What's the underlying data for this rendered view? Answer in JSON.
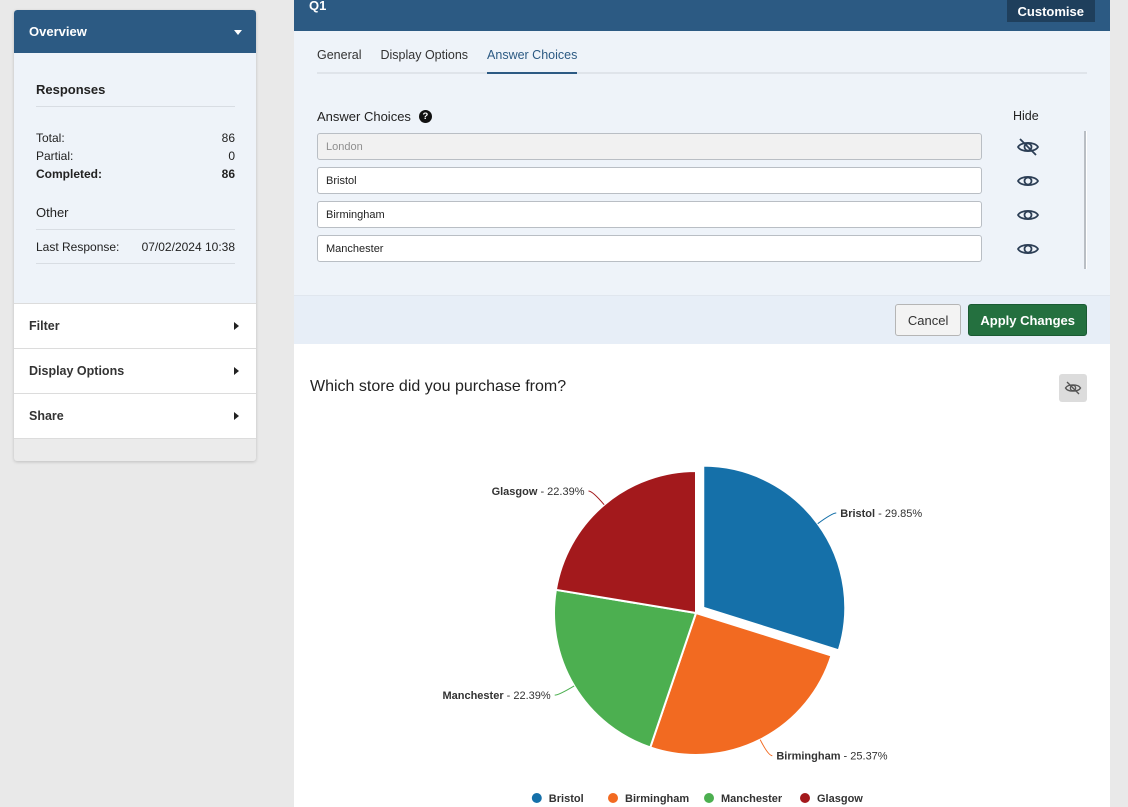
{
  "sidebar": {
    "header": "Overview",
    "responses_heading": "Responses",
    "stats": [
      {
        "label": "Total:",
        "value": "86"
      },
      {
        "label": "Partial:",
        "value": "0"
      },
      {
        "label": "Completed:",
        "value": "86"
      }
    ],
    "other_heading": "Other",
    "last_response_label": "Last Response:",
    "last_response_value": "07/02/2024 10:38",
    "sections": [
      "Filter",
      "Display Options",
      "Share"
    ]
  },
  "question": {
    "id": "Q1",
    "customise_label": "Customise"
  },
  "tabs": [
    {
      "label": "General",
      "active": false
    },
    {
      "label": "Display Options",
      "active": false
    },
    {
      "label": "Answer Choices",
      "active": true
    }
  ],
  "answer_choices": {
    "label": "Answer Choices",
    "help": "?",
    "hide_label": "Hide",
    "items": [
      {
        "value": "London",
        "hidden": true
      },
      {
        "value": "Bristol",
        "hidden": false
      },
      {
        "value": "Birmingham",
        "hidden": false
      },
      {
        "value": "Manchester",
        "hidden": false
      }
    ]
  },
  "actions": {
    "cancel": "Cancel",
    "apply": "Apply Changes"
  },
  "chart_data": {
    "type": "pie",
    "title": "Which store did you purchase from?",
    "slices": [
      {
        "name": "Bristol",
        "value": 29.85,
        "label": "Bristol - 29.85%",
        "color": "#1570a9",
        "exploded": true
      },
      {
        "name": "Birmingham",
        "value": 25.37,
        "label": "Birmingham - 25.37%",
        "color": "#f26a21",
        "exploded": false
      },
      {
        "name": "Manchester",
        "value": 22.39,
        "label": "Manchester - 22.39%",
        "color": "#4caf50",
        "exploded": false
      },
      {
        "name": "Glasgow",
        "value": 22.39,
        "label": "Glasgow - 22.39%",
        "color": "#a3191c",
        "exploded": false
      }
    ],
    "legend": "bottom"
  }
}
